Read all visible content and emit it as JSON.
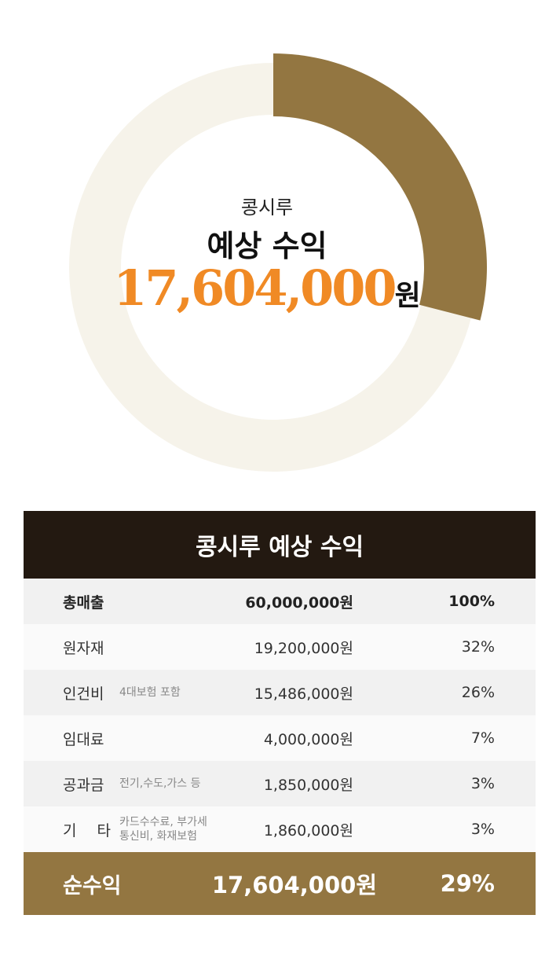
{
  "chart_data": {
    "type": "pie",
    "categories": [
      "순수익",
      "기타"
    ],
    "values": [
      29,
      71
    ],
    "colors": [
      "#937641",
      "#f6f3ea"
    ]
  },
  "center": {
    "brand": "콩시루",
    "headline": "예상 수익",
    "amount": "17,604,000",
    "unit": "원"
  },
  "table": {
    "title": "콩시루 예상 수익",
    "rows": [
      {
        "name": "총매출",
        "note": "",
        "amount": "60,000,000원",
        "percent": "100%"
      },
      {
        "name": "원자재",
        "note": "",
        "amount": "19,200,000원",
        "percent": "32%"
      },
      {
        "name": "인건비",
        "note": "4대보험 포함",
        "amount": "15,486,000원",
        "percent": "26%"
      },
      {
        "name": "임대료",
        "note": "",
        "amount": "4,000,000원",
        "percent": "7%"
      },
      {
        "name": "공과금",
        "note": "전기,수도,가스 등",
        "amount": "1,850,000원",
        "percent": "3%"
      },
      {
        "name_a": "기",
        "name_b": "타",
        "note_a": "카드수수료, 부가세",
        "note_b": "통신비, 화재보험",
        "amount": "1,860,000원",
        "percent": "3%"
      }
    ],
    "total": {
      "name": "순수익",
      "amount": "17,604,000원",
      "percent": "29%"
    }
  },
  "colors": {
    "accent": "#937641",
    "track": "#f6f3ea",
    "highlight": "#f08a25",
    "header_bg": "#231911"
  }
}
